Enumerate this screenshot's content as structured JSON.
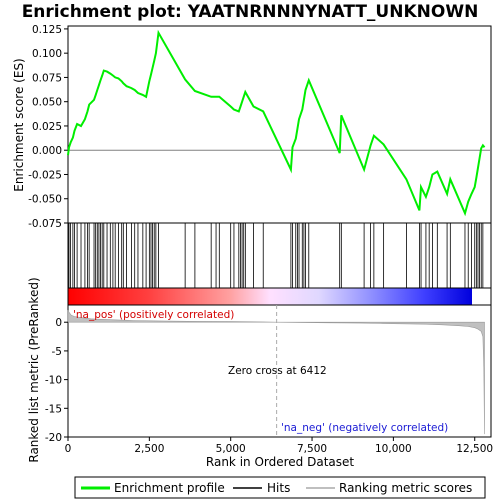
{
  "chart_data": {
    "type": "line",
    "title": "Enrichment plot: YAATNRNNNYNATT_UNKNOWN",
    "xlabel": "Rank in Ordered Dataset",
    "ylabel_top": "Enrichment score (ES)",
    "ylabel_bottom": "Ranked list metric (PreRanked)",
    "xlim": [
      0,
      13000
    ],
    "x_ticks": [
      0,
      2500,
      5000,
      7500,
      10000,
      12500
    ],
    "x_tick_labels": [
      "0",
      "2,500",
      "5,000",
      "7,500",
      "10,000",
      "12,500"
    ],
    "es_ylim": [
      -0.075,
      0.128
    ],
    "es_ticks": [
      -0.075,
      -0.05,
      -0.025,
      0.0,
      0.025,
      0.05,
      0.075,
      0.1,
      0.125
    ],
    "es_tick_labels": [
      "-0.075",
      "-0.050",
      "-0.025",
      "0.000",
      "0.025",
      "0.050",
      "0.075",
      "0.100",
      "0.125"
    ],
    "metric_ylim": [
      -20,
      3
    ],
    "metric_ticks": [
      0,
      -5,
      -10,
      -15,
      -20
    ],
    "metric_tick_labels": [
      "0",
      "-5",
      "-10",
      "-15",
      "-20"
    ],
    "zero_cross_rank": 6412,
    "total_ranks": 12800,
    "annotations": {
      "pos": "'na_pos' (positively correlated)",
      "neg": "'na_neg' (negatively correlated)",
      "zero": "Zero cross at 6412"
    },
    "legend": [
      {
        "label": "Enrichment profile",
        "color": "#00ee00"
      },
      {
        "label": "Hits",
        "color": "#000000"
      },
      {
        "label": "Ranking metric scores",
        "color": "#aaaaaa"
      }
    ],
    "hits": [
      30,
      80,
      150,
      200,
      280,
      400,
      520,
      600,
      650,
      800,
      850,
      900,
      950,
      1000,
      1050,
      1100,
      1200,
      1300,
      1380,
      1450,
      1550,
      1650,
      1700,
      1800,
      1950,
      2050,
      2150,
      2300,
      2400,
      2500,
      2550,
      2600,
      2650,
      2700,
      2780,
      3600,
      3900,
      4400,
      4550,
      4650,
      5000,
      5100,
      5250,
      5300,
      5350,
      5400,
      5450,
      5700,
      6000,
      6850,
      6900,
      7000,
      7050,
      7100,
      7200,
      7250,
      7300,
      7400,
      8350,
      8400,
      9100,
      9300,
      9400,
      9700,
      10400,
      10800,
      10850,
      11000,
      11100,
      11200,
      11350,
      11650,
      11750,
      12200,
      12300,
      12400,
      12500,
      12550,
      12600,
      12650,
      12700,
      12750
    ],
    "es_profile": {
      "x": [
        0,
        30,
        80,
        150,
        200,
        280,
        400,
        520,
        600,
        650,
        800,
        850,
        900,
        950,
        1000,
        1050,
        1100,
        1200,
        1300,
        1380,
        1450,
        1550,
        1650,
        1700,
        1800,
        1950,
        2050,
        2150,
        2300,
        2400,
        2500,
        2550,
        2600,
        2650,
        2700,
        2780,
        3600,
        3900,
        4400,
        4550,
        4650,
        5000,
        5100,
        5250,
        5300,
        5350,
        5400,
        5450,
        5700,
        6000,
        6850,
        6900,
        7000,
        7050,
        7100,
        7200,
        7250,
        7300,
        7400,
        8350,
        8400,
        9100,
        9300,
        9400,
        9700,
        10400,
        10800,
        10850,
        11000,
        11100,
        11200,
        11350,
        11650,
        11750,
        12200,
        12300,
        12400,
        12500,
        12550,
        12600,
        12650,
        12700,
        12750,
        12800
      ],
      "y": [
        -0.005,
        0.003,
        0.008,
        0.013,
        0.02,
        0.027,
        0.025,
        0.032,
        0.04,
        0.047,
        0.052,
        0.057,
        0.062,
        0.067,
        0.072,
        0.077,
        0.082,
        0.081,
        0.079,
        0.077,
        0.075,
        0.074,
        0.071,
        0.069,
        0.066,
        0.064,
        0.062,
        0.059,
        0.057,
        0.055,
        0.071,
        0.078,
        0.085,
        0.092,
        0.1,
        0.121,
        0.073,
        0.061,
        0.055,
        0.055,
        0.055,
        0.045,
        0.042,
        0.04,
        0.045,
        0.05,
        0.055,
        0.06,
        0.045,
        0.04,
        -0.02,
        0.003,
        0.012,
        0.022,
        0.032,
        0.042,
        0.052,
        0.062,
        0.072,
        -0.003,
        0.036,
        -0.02,
        0.005,
        0.015,
        0.006,
        -0.03,
        -0.062,
        -0.038,
        -0.048,
        -0.038,
        -0.025,
        -0.022,
        -0.045,
        -0.03,
        -0.065,
        -0.053,
        -0.045,
        -0.038,
        -0.028,
        -0.018,
        -0.008,
        0.002,
        0.005,
        0.003
      ]
    },
    "metric_profile": {
      "x": [
        0,
        50,
        100,
        200,
        400,
        700,
        1000,
        1500,
        2000,
        3000,
        4000,
        5000,
        6000,
        6412,
        7000,
        8000,
        9000,
        10000,
        11000,
        11500,
        12000,
        12300,
        12500,
        12600,
        12700,
        12750,
        12780,
        12800
      ],
      "y": [
        2.0,
        1.6,
        1.2,
        1.0,
        0.8,
        0.6,
        0.5,
        0.4,
        0.3,
        0.2,
        0.15,
        0.1,
        0.05,
        0.0,
        -0.05,
        -0.1,
        -0.15,
        -0.25,
        -0.35,
        -0.45,
        -0.6,
        -0.75,
        -0.95,
        -1.2,
        -1.6,
        -2.5,
        -8.0,
        -19.5
      ]
    }
  }
}
